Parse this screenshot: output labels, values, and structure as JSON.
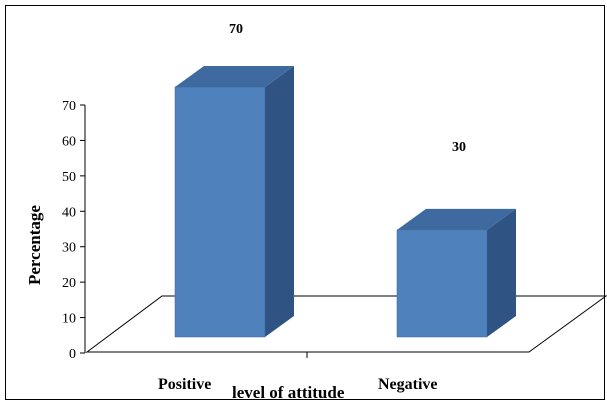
{
  "chart_data": {
    "type": "bar",
    "categories": [
      "Positive",
      "Negative"
    ],
    "values": [
      70,
      30
    ],
    "data_labels": [
      "70",
      "30"
    ],
    "xlabel": "level of attitude",
    "ylabel": "Percentage",
    "ylim": [
      0,
      70
    ],
    "yticks": [
      "0",
      "10",
      "20",
      "30",
      "40",
      "50",
      "60",
      "70"
    ],
    "colors": {
      "bar_front": "#4f81bd",
      "bar_side": "#2f5383",
      "bar_top": "#3e6aa0"
    }
  }
}
